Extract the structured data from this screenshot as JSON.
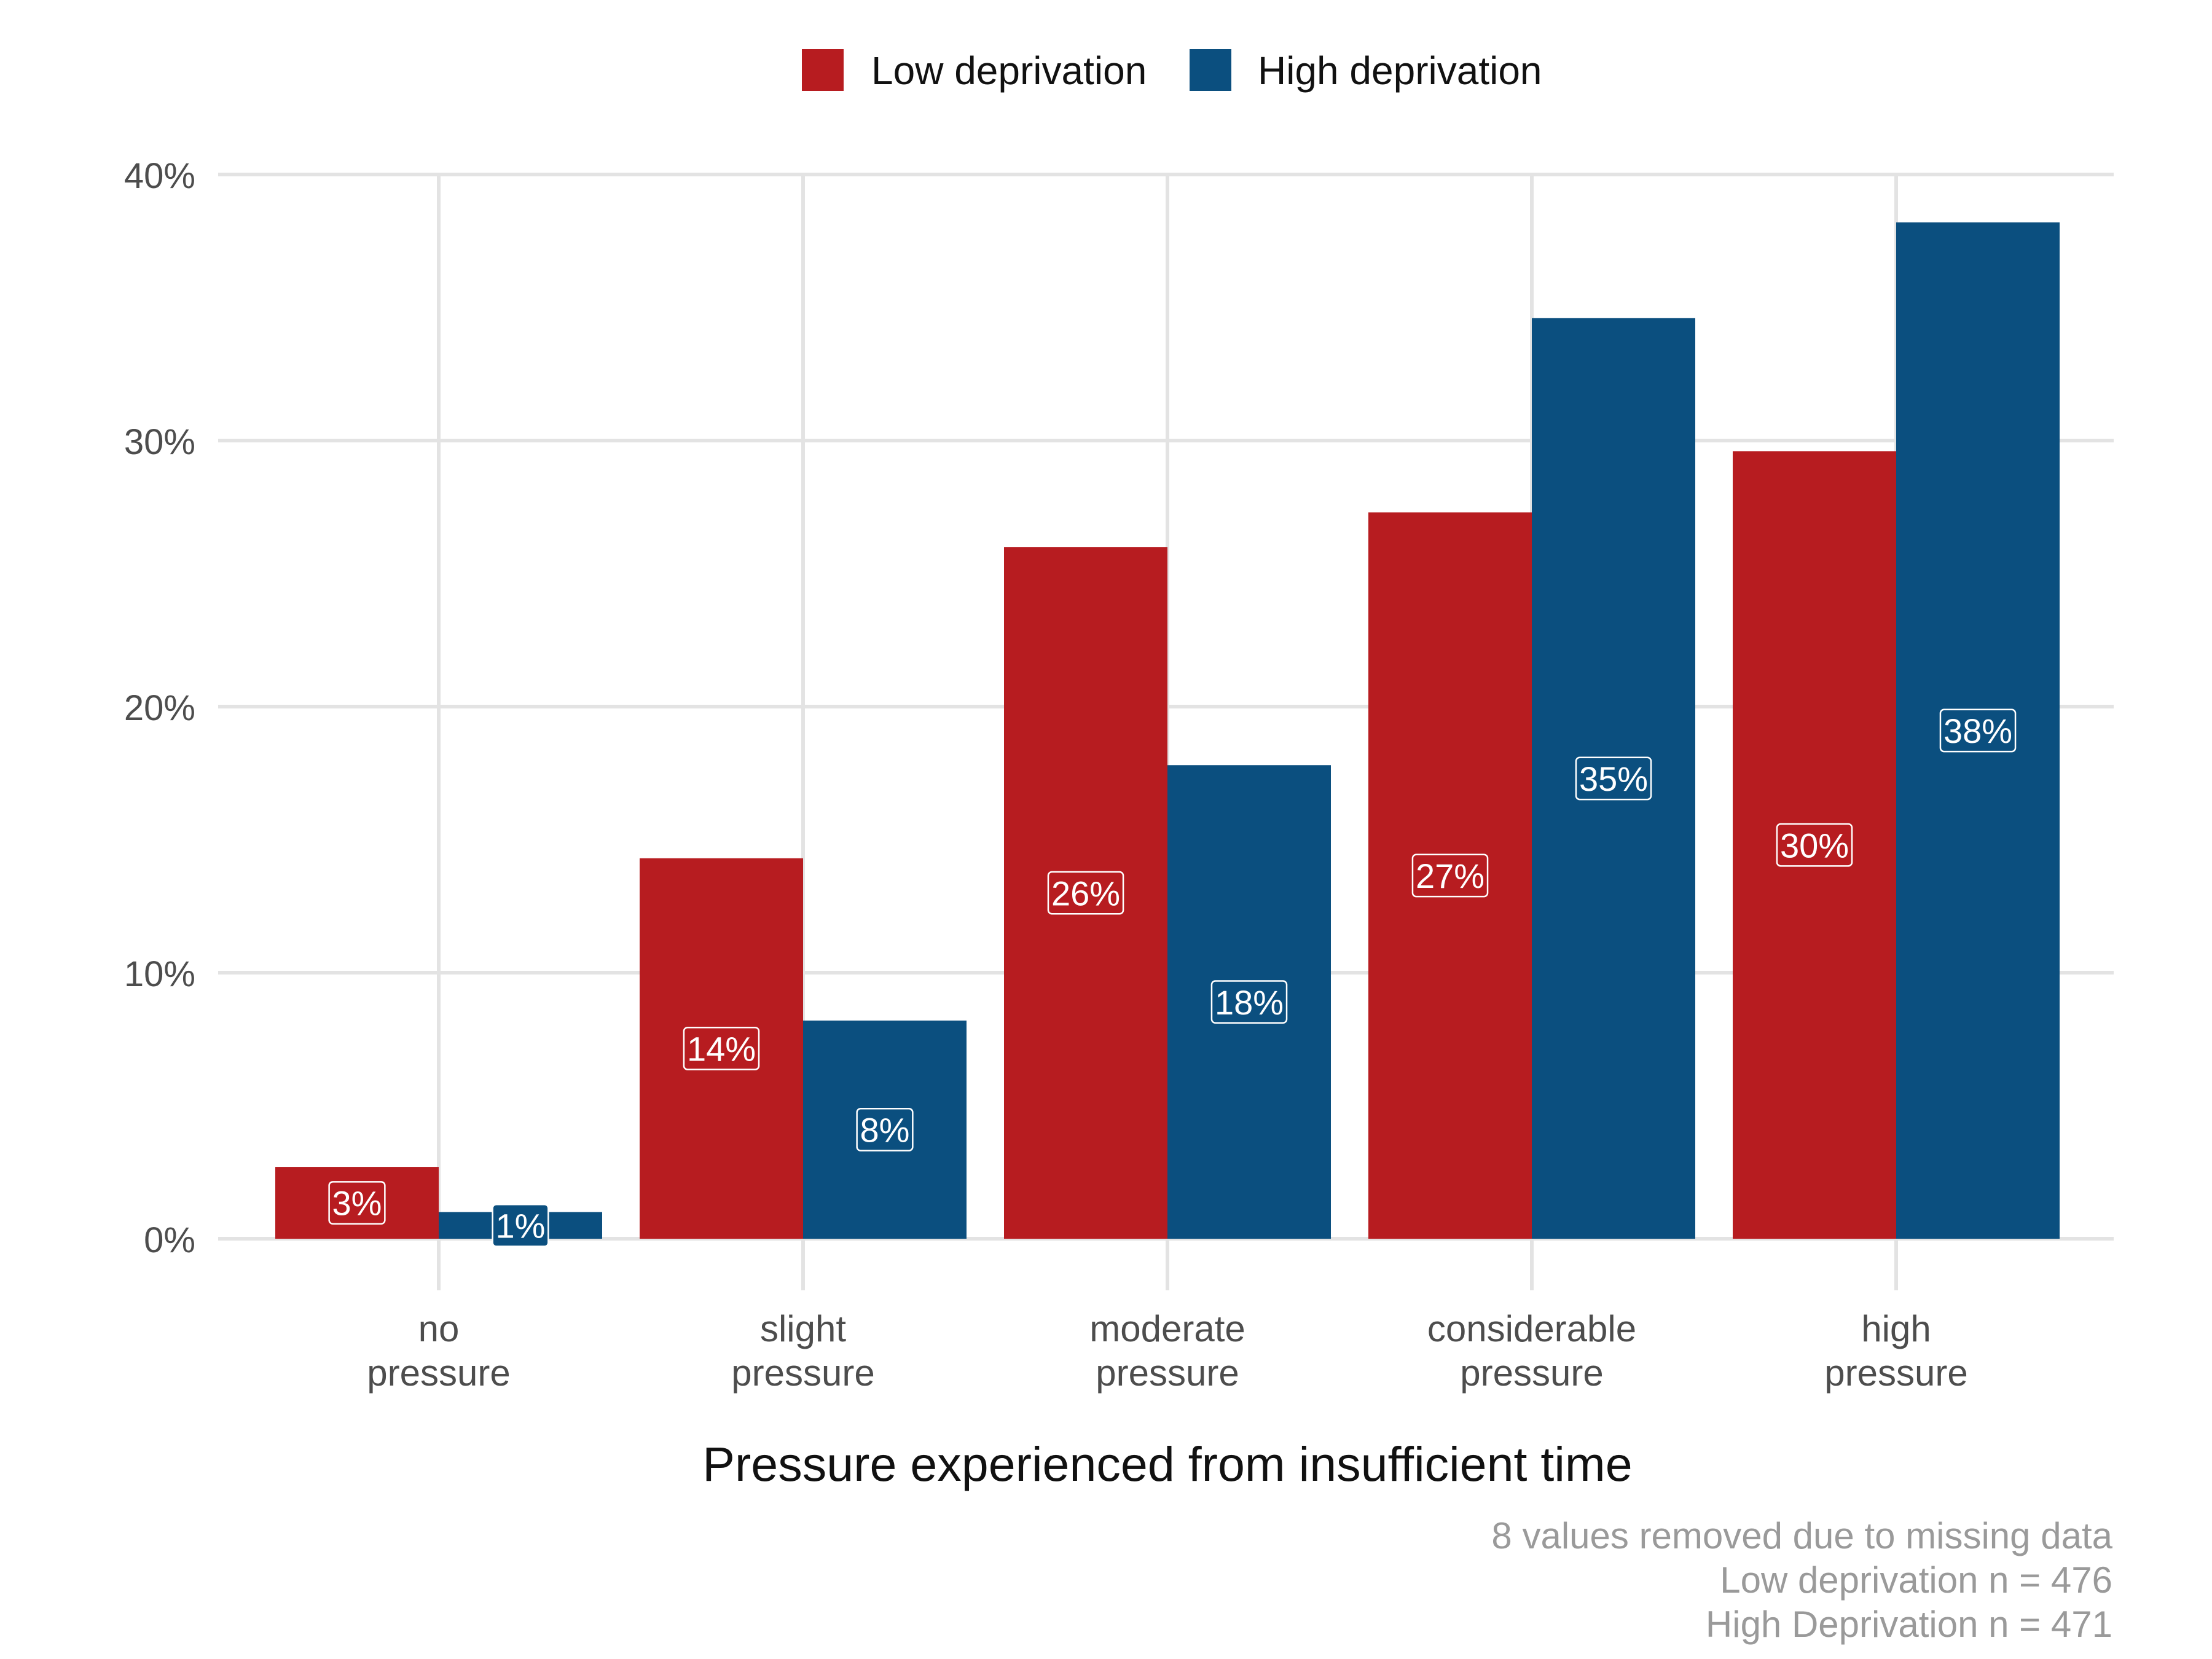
{
  "chart_data": {
    "type": "bar",
    "xlabel": "Pressure experienced from insufficient time",
    "ylabel": "",
    "ylim": [
      0,
      40
    ],
    "yticks": [
      "0%",
      "10%",
      "20%",
      "30%",
      "40%"
    ],
    "ytick_values": [
      0,
      10,
      20,
      30,
      40
    ],
    "categories": [
      [
        "no",
        "pressure"
      ],
      [
        "slight",
        "pressure"
      ],
      [
        "moderate",
        "pressure"
      ],
      [
        "considerable",
        "pressure"
      ],
      [
        "high",
        "pressure"
      ]
    ],
    "series": [
      {
        "name": "Low deprivation",
        "color": "#b71c20",
        "values": [
          2.7,
          14.3,
          26.0,
          27.3,
          29.6
        ],
        "labels": [
          "3%",
          "14%",
          "26%",
          "27%",
          "30%"
        ]
      },
      {
        "name": "High deprivation",
        "color": "#0b4f7f",
        "values": [
          1.0,
          8.2,
          17.8,
          34.6,
          38.2
        ],
        "labels": [
          "1%",
          "8%",
          "18%",
          "35%",
          "38%"
        ]
      }
    ],
    "legend_position": "top",
    "grid": true,
    "caption": [
      "8 values removed due to missing data",
      "Low deprivation n = 476",
      "High Deprivation n = 471"
    ]
  }
}
